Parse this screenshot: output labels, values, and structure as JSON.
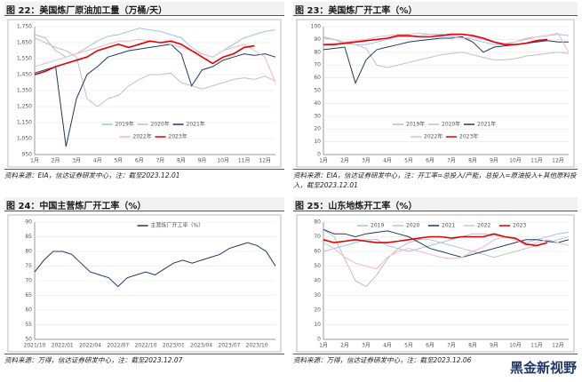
{
  "chart_data": [
    {
      "type": "line",
      "title": "图 22：美国炼厂原油加工量（万桶/天）",
      "source": "资料来源：EIA，信达证券研发中心，注：截至2023.12.01",
      "legend": "lower center",
      "categories": [
        "1月",
        null,
        "2月",
        null,
        "3月",
        null,
        "4月",
        null,
        "5月",
        null,
        "6月",
        null,
        "7月",
        null,
        "8月",
        null,
        "9月",
        null,
        "10月",
        null,
        "11月",
        null,
        "12月",
        null
      ],
      "ylim": [
        950,
        1750
      ],
      "yticks": [
        {
          "value": 950,
          "label": "950"
        },
        {
          "value": 1050,
          "label": "1,050"
        },
        {
          "value": 1150,
          "label": "1,150"
        },
        {
          "value": 1250,
          "label": "1,250"
        },
        {
          "value": 1350,
          "label": "1,350"
        },
        {
          "value": 1450,
          "label": "1,450"
        },
        {
          "value": 1550,
          "label": "1,550"
        },
        {
          "value": 1650,
          "label": "1,650"
        },
        {
          "value": 1750,
          "label": "1,750"
        }
      ],
      "series": [
        {
          "name": "2019年",
          "color": "#9dc3e6",
          "values": [
            1700,
            1680,
            1600,
            1560,
            1580,
            1620,
            1660,
            1690,
            1700,
            1720,
            1740,
            1730,
            1720,
            1700,
            1680,
            1620,
            1580,
            1560,
            1600,
            1640,
            1680,
            1700,
            1720,
            1730
          ]
        },
        {
          "name": "2020年",
          "color": "#c0c0c0",
          "values": [
            1680,
            1650,
            1620,
            1600,
            1560,
            1300,
            1250,
            1300,
            1320,
            1380,
            1420,
            1450,
            1450,
            1460,
            1400,
            1380,
            1360,
            1380,
            1400,
            1420,
            1430,
            1420,
            1440,
            1410
          ]
        },
        {
          "name": "2021年",
          "color": "#1f3864",
          "values": [
            1460,
            1480,
            1500,
            1000,
            1300,
            1450,
            1500,
            1560,
            1580,
            1600,
            1610,
            1620,
            1630,
            1640,
            1580,
            1380,
            1480,
            1500,
            1540,
            1560,
            1580,
            1570,
            1580,
            1560
          ]
        },
        {
          "name": "2022年",
          "color": "#f4b6c2",
          "values": [
            1500,
            1520,
            1540,
            1560,
            1580,
            1600,
            1620,
            1640,
            1660,
            1660,
            1670,
            1660,
            1650,
            1640,
            1620,
            1600,
            1580,
            1560,
            1600,
            1620,
            1640,
            1600,
            1560,
            1400
          ]
        },
        {
          "name": "2023年",
          "color": "#e00000",
          "values": [
            1450,
            1470,
            1500,
            1520,
            1540,
            1560,
            1600,
            1620,
            1640,
            1620,
            1640,
            1660,
            1650,
            1660,
            1640,
            1600,
            1560,
            1520,
            1560,
            1580,
            1620,
            1630,
            null,
            null
          ]
        }
      ]
    },
    {
      "type": "line",
      "title": "图 23：美国炼厂开工率（%）",
      "source": "资料来源：EIA，信达证券研发中心，注：开工率=总投入/产能，总投入=原油投入+其他原料投入，截至2023.12.01",
      "legend": "lower center",
      "categories": [
        "1月",
        null,
        "2月",
        null,
        "3月",
        null,
        "4月",
        null,
        "5月",
        null,
        "6月",
        null,
        "7月",
        null,
        "8月",
        null,
        "9月",
        null,
        "10月",
        null,
        "11月",
        null,
        "12月",
        null
      ],
      "ylim": [
        0,
        100
      ],
      "yticks": [
        0,
        10,
        20,
        30,
        40,
        50,
        60,
        70,
        80,
        90,
        100
      ],
      "series": [
        {
          "name": "2019年",
          "color": "#9dc3e6",
          "values": [
            92,
            90,
            87,
            86,
            86,
            88,
            90,
            92,
            92,
            93,
            94,
            94,
            93,
            92,
            90,
            88,
            86,
            86,
            88,
            90,
            92,
            93,
            94,
            93
          ]
        },
        {
          "name": "2020年",
          "color": "#c0c0c0",
          "values": [
            91,
            90,
            88,
            86,
            83,
            70,
            68,
            70,
            72,
            74,
            76,
            78,
            79,
            80,
            78,
            76,
            74,
            74,
            75,
            77,
            78,
            79,
            80,
            79
          ]
        },
        {
          "name": "2021年",
          "color": "#1f3864",
          "values": [
            82,
            83,
            84,
            56,
            74,
            82,
            84,
            86,
            88,
            89,
            90,
            91,
            91,
            92,
            88,
            80,
            84,
            85,
            86,
            87,
            88,
            89,
            88,
            88
          ]
        },
        {
          "name": "2022年",
          "color": "#f4b6c2",
          "values": [
            86,
            87,
            88,
            89,
            90,
            92,
            93,
            94,
            94,
            95,
            94,
            93,
            92,
            91,
            92,
            90,
            88,
            87,
            88,
            91,
            92,
            93,
            95,
            80
          ]
        },
        {
          "name": "2023年",
          "color": "#e00000",
          "values": [
            86,
            86,
            87,
            88,
            89,
            90,
            91,
            93,
            93,
            92,
            92,
            93,
            94,
            94,
            93,
            91,
            88,
            86,
            86,
            87,
            89,
            90,
            null,
            null
          ]
        }
      ]
    },
    {
      "type": "line",
      "title": "图 24：中国主营炼厂开工率（%）",
      "source": "资料来源：万得，信达证券研发中心，注：截至2023.12.07",
      "legend": "upper center",
      "categories": [
        "2021/10",
        null,
        null,
        "2022/01",
        null,
        null,
        "2022/04",
        null,
        null,
        "2022/07",
        null,
        null,
        "2022/10",
        null,
        null,
        "2023/01",
        null,
        null,
        "2023/04",
        null,
        null,
        "2023/07",
        null,
        null,
        "2023/10",
        null,
        null
      ],
      "ylim": [
        50,
        90
      ],
      "yticks": [
        50,
        55,
        60,
        65,
        70,
        75,
        80,
        85,
        90
      ],
      "series": [
        {
          "name": "主营炼厂开工率（%）",
          "color": "#1f3864",
          "values": [
            73,
            77,
            80,
            80,
            79,
            76,
            73,
            72,
            71,
            68,
            71,
            72,
            73,
            72,
            74,
            76,
            77,
            76,
            77,
            78,
            79,
            81,
            82,
            83,
            82,
            80,
            75
          ]
        }
      ]
    },
    {
      "type": "line",
      "title": "图 25：山东地炼开工率（%）",
      "source": "资料来源：万得，信达证券研发中心，注：截至2023.12.06",
      "legend": "upper center",
      "categories": [
        "1月",
        null,
        "2月",
        null,
        "3月",
        null,
        "4月",
        null,
        "5月",
        null,
        "6月",
        null,
        "7月",
        null,
        "8月",
        null,
        "9月",
        null,
        "10月",
        null,
        "11月",
        null,
        "12月",
        null
      ],
      "ylim": [
        0,
        80
      ],
      "yticks": [
        0,
        10,
        20,
        30,
        40,
        50,
        60,
        70,
        80
      ],
      "series": [
        {
          "name": "2019",
          "color": "#9dc3e6",
          "values": [
            60,
            62,
            64,
            66,
            68,
            68,
            64,
            62,
            60,
            62,
            64,
            66,
            68,
            70,
            72,
            72,
            71,
            70,
            68,
            66,
            68,
            70,
            72,
            73
          ]
        },
        {
          "name": "2020",
          "color": "#c0c0c0",
          "values": [
            75,
            70,
            55,
            40,
            36,
            44,
            55,
            62,
            66,
            68,
            68,
            66,
            64,
            62,
            60,
            58,
            56,
            58,
            60,
            62,
            64,
            66,
            68,
            70
          ]
        },
        {
          "name": "2021",
          "color": "#1f3864",
          "values": [
            75,
            72,
            72,
            70,
            72,
            73,
            74,
            72,
            70,
            66,
            62,
            60,
            58,
            56,
            58,
            60,
            62,
            64,
            66,
            68,
            68,
            67,
            66,
            68
          ]
        },
        {
          "name": "2022",
          "color": "#f4b6c2",
          "values": [
            66,
            62,
            56,
            52,
            50,
            48,
            56,
            60,
            62,
            60,
            58,
            56,
            55,
            56,
            60,
            63,
            68,
            70,
            68,
            64,
            66,
            68,
            66,
            64
          ]
        },
        {
          "name": "2023",
          "color": "#e00000",
          "values": [
            68,
            66,
            67,
            68,
            67,
            66,
            66,
            67,
            68,
            69,
            70,
            70,
            69,
            70,
            70,
            70,
            72,
            70,
            69,
            65,
            64,
            66,
            null,
            null
          ]
        }
      ]
    }
  ],
  "watermark": "黑金新视野"
}
